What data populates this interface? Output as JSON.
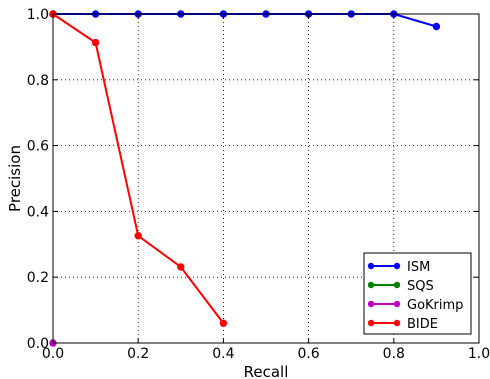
{
  "chart_data": {
    "type": "line",
    "xlabel": "Recall",
    "ylabel": "Precision",
    "xlim": [
      0.0,
      1.0
    ],
    "ylim": [
      0.0,
      1.0
    ],
    "grid": true,
    "grid_style": "dotted",
    "legend_position": "bottom-right",
    "x_ticks": [
      "0.0",
      "0.2",
      "0.4",
      "0.6",
      "0.8",
      "1.0"
    ],
    "y_ticks": [
      "0.0",
      "0.2",
      "0.4",
      "0.6",
      "0.8",
      "1.0"
    ],
    "series": [
      {
        "name": "ISM",
        "color": "#0000ff",
        "x": [
          0.0,
          0.1,
          0.2,
          0.3,
          0.4,
          0.5,
          0.6,
          0.7,
          0.8,
          0.9
        ],
        "y": [
          1.0,
          1.0,
          1.0,
          1.0,
          1.0,
          1.0,
          1.0,
          1.0,
          1.0,
          0.962
        ]
      },
      {
        "name": "SQS",
        "color": "#008000",
        "x": [
          0.0
        ],
        "y": [
          1.0
        ]
      },
      {
        "name": "GoKrimp",
        "color": "#bf00bf",
        "x": [
          0.0
        ],
        "y": [
          0.0
        ]
      },
      {
        "name": "BIDE",
        "color": "#ff0000",
        "x": [
          0.0,
          0.1,
          0.2,
          0.3,
          0.4
        ],
        "y": [
          1.0,
          0.913,
          0.326,
          0.231,
          0.06
        ]
      }
    ]
  }
}
